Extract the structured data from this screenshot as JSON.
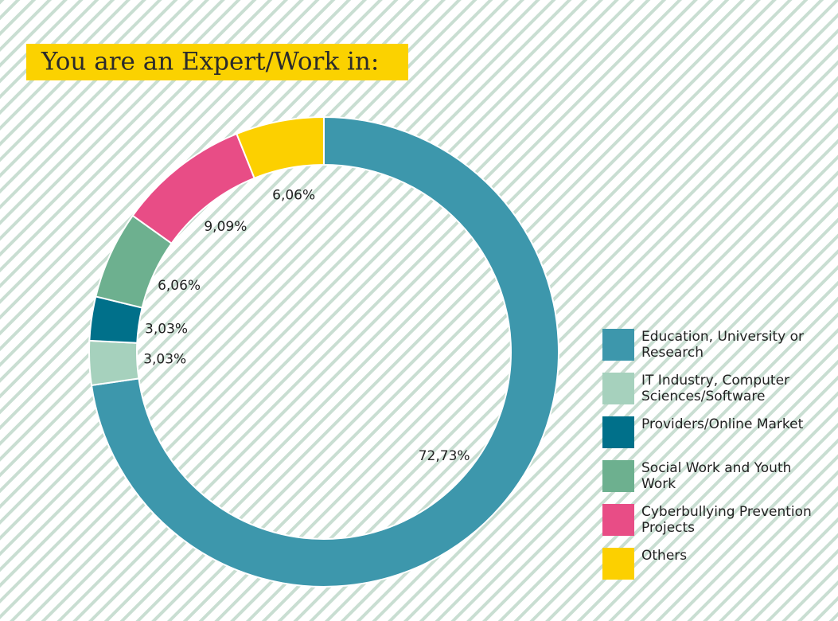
{
  "chart_data": {
    "type": "donut",
    "title": "You are an Expert/Work in:",
    "categories": [
      "Education, University or Research",
      "IT Industry, Computer Sciences/Software",
      "Providers/Online Market",
      "Social Work and Youth Work",
      "Cyberbullying Prevention Projects",
      "Others"
    ],
    "values": [
      72.73,
      3.03,
      3.03,
      6.06,
      9.09,
      6.06
    ],
    "value_labels": [
      "72,73%",
      "3,03%",
      "3,03%",
      "6,06%",
      "9,09%",
      "6,06%"
    ],
    "colors": [
      "#3d97ac",
      "#a6d1bd",
      "#00708a",
      "#6db08f",
      "#e84d86",
      "#fcd000"
    ],
    "legend": "right"
  }
}
